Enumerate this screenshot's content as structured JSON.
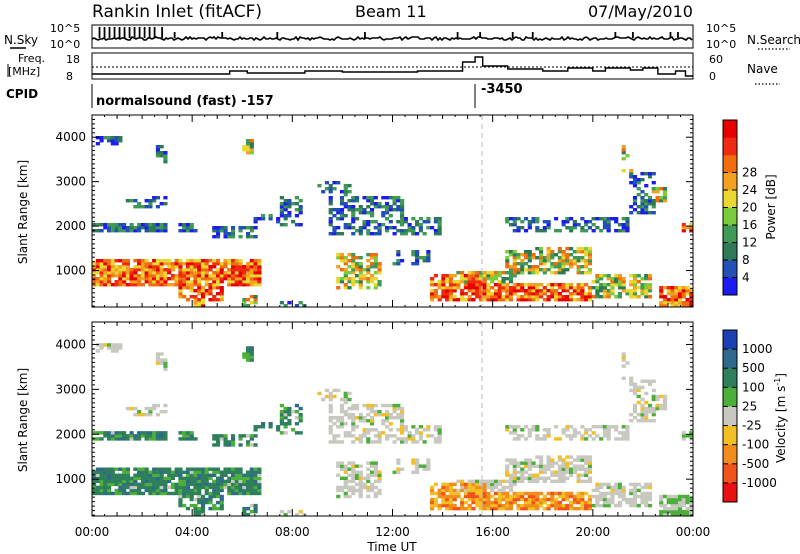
{
  "header": {
    "title": "Rankin Inlet (fitACF)",
    "beam": "Beam 11",
    "date": "07/May/2010"
  },
  "top_panels": {
    "nsky_label": "N.Sky",
    "nsearch_label": "N.Search",
    "nsky_ticks": [
      "10^5",
      "10^0"
    ],
    "nsearch_ticks": [
      "10^5",
      "10^0"
    ],
    "freq_label_1": "Freq.",
    "freq_label_2": "[MHz]",
    "freq_ticks": [
      "18",
      "8"
    ],
    "nave_label": "Nave",
    "nave_ticks": [
      "60",
      "0"
    ],
    "cpid_label": "CPID",
    "cpid_text_1": "normalsound (fast) -157",
    "cpid_text_2": "-3450"
  },
  "colors": {
    "power": [
      "#1c1cf0",
      "#2350b4",
      "#2e7a54",
      "#3e9a56",
      "#7bcc3d",
      "#e8d830",
      "#f5a020",
      "#f06e10",
      "#ee2a10",
      "#e80000"
    ],
    "velocity": [
      "#1d3fb4",
      "#2f6a8c",
      "#2e7f5c",
      "#4caf3a",
      "#c8c8c0",
      "#f2bf25",
      "#f28c1c",
      "#f0541a",
      "#e81010"
    ]
  },
  "chart_data": [
    {
      "type": "heatmap",
      "name": "power",
      "xlabel": "",
      "ylabel": "Slant Range [km]",
      "xlim_hours": [
        0,
        24
      ],
      "ylim_km": [
        180,
        4500
      ],
      "yticks": [
        "1000",
        "2000",
        "3000",
        "4000"
      ],
      "colorbar_label": "Power [dB]",
      "colorbar_ticks": [
        "4",
        "8",
        "12",
        "16",
        "20",
        "24",
        "28"
      ],
      "grid": false
    },
    {
      "type": "heatmap",
      "name": "velocity",
      "xlabel": "Time UT",
      "ylabel": "Slant Range [km]",
      "xlim_hours": [
        0,
        24
      ],
      "ylim_km": [
        180,
        4500
      ],
      "yticks": [
        "1000",
        "2000",
        "3000",
        "4000"
      ],
      "xticks": [
        "00:00",
        "04:00",
        "08:00",
        "12:00",
        "16:00",
        "20:00",
        "00:00"
      ],
      "colorbar_label": "Velocity [m s^-1]",
      "colorbar_ticks": [
        "1000",
        "500",
        "100",
        "25",
        "-25",
        "-100",
        "-500",
        "-1000"
      ],
      "grid": false
    }
  ]
}
